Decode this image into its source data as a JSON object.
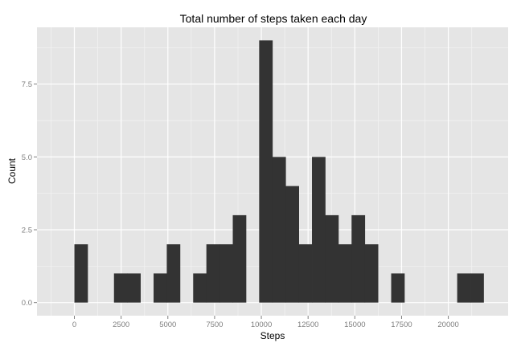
{
  "chart_data": {
    "type": "bar",
    "title": "Total number of steps taken each day",
    "xlabel": "Steps",
    "ylabel": "Count",
    "xlim": [
      -2000,
      23200
    ],
    "ylim": [
      -0.45,
      9.45
    ],
    "x_ticks": [
      0,
      2500,
      5000,
      7500,
      10000,
      12500,
      15000,
      17500,
      20000
    ],
    "x_tick_labels": [
      "0",
      "2500",
      "5000",
      "7500",
      "10000",
      "12500",
      "15000",
      "17500",
      "20000"
    ],
    "y_ticks": [
      0,
      2.5,
      5,
      7.5
    ],
    "y_tick_labels": [
      "0.0",
      "2.5",
      "5.0",
      "7.5"
    ],
    "bin_width": 706,
    "bins": [
      {
        "x0": 0,
        "x1": 706,
        "count": 2
      },
      {
        "x0": 706,
        "x1": 1412,
        "count": 0
      },
      {
        "x0": 1412,
        "x1": 2118,
        "count": 0
      },
      {
        "x0": 2118,
        "x1": 2824,
        "count": 1
      },
      {
        "x0": 2824,
        "x1": 3530,
        "count": 1
      },
      {
        "x0": 3530,
        "x1": 4236,
        "count": 0
      },
      {
        "x0": 4236,
        "x1": 4942,
        "count": 1
      },
      {
        "x0": 4942,
        "x1": 5648,
        "count": 2
      },
      {
        "x0": 5648,
        "x1": 6354,
        "count": 0
      },
      {
        "x0": 6354,
        "x1": 7060,
        "count": 1
      },
      {
        "x0": 7060,
        "x1": 7766,
        "count": 2
      },
      {
        "x0": 7766,
        "x1": 8472,
        "count": 2
      },
      {
        "x0": 8472,
        "x1": 9178,
        "count": 3
      },
      {
        "x0": 9178,
        "x1": 9884,
        "count": 0
      },
      {
        "x0": 9884,
        "x1": 10590,
        "count": 9
      },
      {
        "x0": 10590,
        "x1": 11296,
        "count": 5
      },
      {
        "x0": 11296,
        "x1": 12002,
        "count": 4
      },
      {
        "x0": 12002,
        "x1": 12708,
        "count": 2
      },
      {
        "x0": 12708,
        "x1": 13414,
        "count": 5
      },
      {
        "x0": 13414,
        "x1": 14120,
        "count": 3
      },
      {
        "x0": 14120,
        "x1": 14826,
        "count": 2
      },
      {
        "x0": 14826,
        "x1": 15532,
        "count": 3
      },
      {
        "x0": 15532,
        "x1": 16238,
        "count": 2
      },
      {
        "x0": 16238,
        "x1": 16944,
        "count": 0
      },
      {
        "x0": 16944,
        "x1": 17650,
        "count": 1
      },
      {
        "x0": 17650,
        "x1": 18356,
        "count": 0
      },
      {
        "x0": 18356,
        "x1": 19062,
        "count": 0
      },
      {
        "x0": 19062,
        "x1": 19768,
        "count": 0
      },
      {
        "x0": 19768,
        "x1": 20474,
        "count": 0
      },
      {
        "x0": 20474,
        "x1": 21180,
        "count": 1
      },
      {
        "x0": 21180,
        "x1": 21886,
        "count": 1
      }
    ],
    "grid": true,
    "legend": "none",
    "colors": {
      "panel": "#e5e5e5",
      "grid_major": "#ffffff",
      "grid_minor": "#f2f2f2",
      "bar": "#333333",
      "tick_text": "#7f7f7f"
    }
  }
}
